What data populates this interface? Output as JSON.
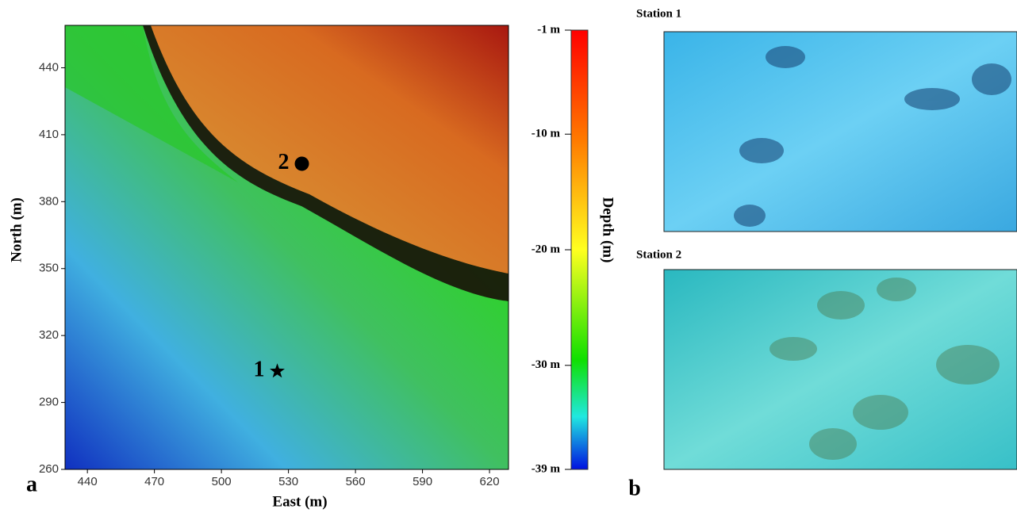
{
  "chart_data": {
    "type": "map",
    "xlabel": "East (m)",
    "ylabel": "North (m)",
    "xlim": [
      430,
      628.5
    ],
    "ylim": [
      260,
      459
    ],
    "xticks": [
      440,
      470,
      500,
      530,
      560,
      590,
      620
    ],
    "yticks": [
      260,
      290,
      320,
      350,
      380,
      410,
      440
    ],
    "markers": [
      {
        "label": "1",
        "x": 525,
        "y": 304,
        "shape": "star"
      },
      {
        "label": "2",
        "x": 536,
        "y": 397,
        "shape": "circle"
      }
    ],
    "colorbar": {
      "label": "Depth (m)",
      "lim": [
        -39,
        -1
      ],
      "ticks": [
        {
          "value": -1,
          "label": "-1 m"
        },
        {
          "value": -10,
          "label": "-10 m"
        },
        {
          "value": -20,
          "label": "-20 m"
        },
        {
          "value": -30,
          "label": "-30 m"
        },
        {
          "value": -39,
          "label": "-39 m"
        }
      ]
    },
    "panel_label": "a"
  },
  "photos": {
    "panel_label": "b",
    "stations": [
      {
        "title": "Station 1"
      },
      {
        "title": "Station 2"
      }
    ]
  }
}
